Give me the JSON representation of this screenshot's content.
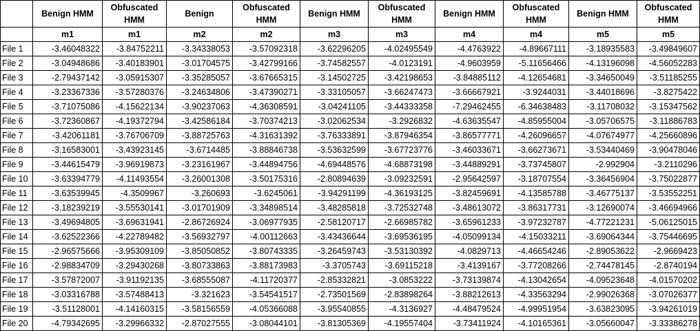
{
  "headers": [
    "Benign HMM",
    "Obfuscated HMM",
    "Benign",
    "Obfuscated HMM",
    "Benign HMM",
    "Obfuscated HMM",
    "Benign HMM",
    "Obfuscated HMM",
    "Benign HMM",
    "Obfuscated HMM"
  ],
  "subheaders": [
    "m1",
    "m1",
    "m2",
    "m2",
    "m3",
    "m3",
    "m4",
    "m4",
    "m5",
    "m5"
  ],
  "rows": [
    {
      "label": "File 1",
      "values": [
        "-3.46048322",
        "-3.84752211",
        "-3.34338053",
        "-3.57092318",
        "-3.62296205",
        "-4.02495549",
        "-4.4763922",
        "-4.89667111",
        "-3.18935583",
        "-3.49849607"
      ]
    },
    {
      "label": "File 2",
      "values": [
        "-3.04948686",
        "-3.40183901",
        "-3.01704575",
        "-3.42799166",
        "-3.74582557",
        "-4.0123191",
        "-4.9603959",
        "-5.11656466",
        "-4.13196098",
        "-4.56052283"
      ]
    },
    {
      "label": "File 3",
      "values": [
        "-2.79437142",
        "-3.05915307",
        "-3.35285057",
        "-3.67665315",
        "-3.14502725",
        "-3.42198653",
        "-3.84885112",
        "-4.12654681",
        "-3.34650049",
        "-3.51185255"
      ]
    },
    {
      "label": "File 4",
      "values": [
        "-3.23367336",
        "-3.57280376",
        "-3.24634806",
        "-3.47390271",
        "-3.33105057",
        "-3.66247473",
        "-3.66667921",
        "-3.9244031",
        "-3.44018696",
        "-3.8275422"
      ]
    },
    {
      "label": "File 5",
      "values": [
        "-3.71075086",
        "-4.15622134",
        "-3.90237063",
        "-4.36308591",
        "-3.04241105",
        "-3.44333358",
        "-7.29462455",
        "-6.34638483",
        "-3.11708032",
        "-3.15347562"
      ]
    },
    {
      "label": "File 6",
      "values": [
        "-3.72360867",
        "-4.19372794",
        "-3.42586184",
        "-3.70374213",
        "-3.02062534",
        "-3.2926832",
        "-4.63635547",
        "-4.85955004",
        "-3.05706575",
        "-3.11886783"
      ]
    },
    {
      "label": "File 7",
      "values": [
        "-3.42061181",
        "-3.76706709",
        "-3.88725763",
        "-4.31631392",
        "-3.76333891",
        "-3.87946354",
        "-3.86577771",
        "-4.26096657",
        "-4.07674977",
        "-4.25660896"
      ]
    },
    {
      "label": "File 8",
      "values": [
        "-3.16583001",
        "-3.43923145",
        "-3.6714485",
        "-3.88846738",
        "-3.53632599",
        "-3.67723776",
        "-3.46033671",
        "-3.66273671",
        "-3.53440469",
        "-3.90478046"
      ]
    },
    {
      "label": "File 9",
      "values": [
        "-3.44615479",
        "-3.96919873",
        "-3.23161967",
        "-3.44894756",
        "-4.69448576",
        "-4.68873198",
        "-3.44889291",
        "-3.73745807",
        "-2.992904",
        "-3.2110296"
      ]
    },
    {
      "label": "File 10",
      "values": [
        "-3.63394779",
        "-4.11493554",
        "-3.26001308",
        "-3.50175316",
        "-2.80894639",
        "-3.09232591",
        "-2.95642597",
        "-3.18707554",
        "-3.36456904",
        "-3.75022877"
      ]
    },
    {
      "label": "File 11",
      "values": [
        "-3.63539945",
        "-4.3509967",
        "-3.260693",
        "-3.6245061",
        "-3.94291199",
        "-4.36193125",
        "-3.82459691",
        "-4.13585788",
        "-3.46775137",
        "-3.53552251"
      ]
    },
    {
      "label": "File 12",
      "values": [
        "-3.18239219",
        "-3.55530141",
        "-3.01701909",
        "-3.34898514",
        "-3.48285818",
        "-3.72532748",
        "-3.48613072",
        "-3.86317731",
        "-3.12690074",
        "-3.46694966"
      ]
    },
    {
      "label": "File 13",
      "values": [
        "-3.49694805",
        "-3.69631941",
        "-2.86726924",
        "-3.06977935",
        "-2.58120717",
        "-2.66985782",
        "-3.65961233",
        "-3.97232787",
        "-4.77221231",
        "-5.06125015"
      ]
    },
    {
      "label": "File 14",
      "values": [
        "-3.62522366",
        "-4.22789482",
        "-3.56932797",
        "-4.00112663",
        "-3.43436644",
        "-3.69536195",
        "-4.05099134",
        "-4.15033211",
        "-3.69064344",
        "-3.75446695"
      ]
    },
    {
      "label": "File 15",
      "values": [
        "-2.96575666",
        "-3.95309109",
        "-3.85050852",
        "-3.80743335",
        "-3.26459743",
        "-3.53130392",
        "-4.0829713",
        "-4.46654246",
        "-2.89053622",
        "-2.9669423"
      ]
    },
    {
      "label": "File 16",
      "values": [
        "-2.98834709",
        "-3.29430268",
        "-3.80733863",
        "-3.88173983",
        "-3.3705743",
        "-3.69115218",
        "-3.4139167",
        "-3.77208266",
        "-2.74478145",
        "-2.8740194"
      ]
    },
    {
      "label": "File 17",
      "values": [
        "-3.57872007",
        "-3.91192135",
        "-3.68555087",
        "-4.11720377",
        "-2.85332821",
        "-3.0853222",
        "-3.73139874",
        "-4.13042654",
        "-4.09523648",
        "-4.01570202"
      ]
    },
    {
      "label": "File 18",
      "values": [
        "-3.03316788",
        "-3.57488413",
        "-3.321623",
        "-3.54541517",
        "-2.73501569",
        "-2.83898264",
        "-3.88212613",
        "-4.33563294",
        "-2.99026368",
        "-3.07026377"
      ]
    },
    {
      "label": "File 19",
      "values": [
        "-3.51128001",
        "-4.14160315",
        "-3.58156559",
        "-4.05366088",
        "-3.95540855",
        "-4.3136927",
        "-4.48479524",
        "-4.99951954",
        "-3.63823095",
        "-3.94261019"
      ]
    },
    {
      "label": "File 20",
      "values": [
        "-4.79342695",
        "-3.29966332",
        "-2.87027555",
        "-3.08044101",
        "-3.81305369",
        "-4.19557404",
        "-3.73411924",
        "-4.10165361",
        "-3.05660047",
        "-3.33386278"
      ]
    }
  ]
}
